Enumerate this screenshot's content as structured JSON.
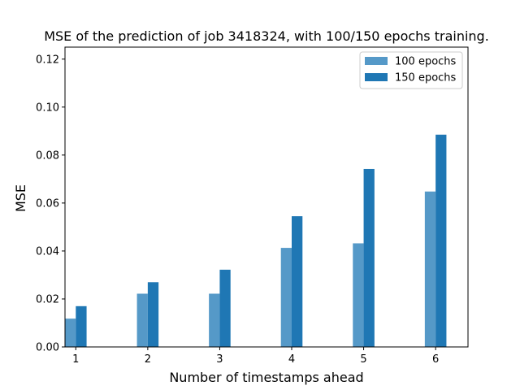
{
  "chart_data": {
    "type": "bar",
    "title": "MSE of the prediction of job 3418324, with 100/150 epochs training.",
    "xlabel": "Number of timestamps ahead",
    "ylabel": "MSE",
    "categories": [
      "1",
      "2",
      "3",
      "4",
      "5",
      "6"
    ],
    "x": [
      1,
      2,
      3,
      4,
      5,
      6
    ],
    "series": [
      {
        "name": "100 epochs",
        "values": [
          0.0118,
          0.0222,
          0.0222,
          0.0413,
          0.0432,
          0.0648
        ],
        "color": "#5599c8"
      },
      {
        "name": "150 epochs",
        "values": [
          0.017,
          0.027,
          0.0322,
          0.0545,
          0.0742,
          0.0885
        ],
        "color": "#1f77b4"
      }
    ],
    "xlim": [
      0.85,
      6.45
    ],
    "ylim": [
      0,
      0.125
    ],
    "yticks": [
      0.0,
      0.02,
      0.04,
      0.06,
      0.08,
      0.1,
      0.12
    ],
    "ytick_labels": [
      "0.00",
      "0.02",
      "0.04",
      "0.06",
      "0.08",
      "0.10",
      "0.12"
    ],
    "bar_width": 0.15,
    "grid": false,
    "legend_position": "upper right"
  }
}
